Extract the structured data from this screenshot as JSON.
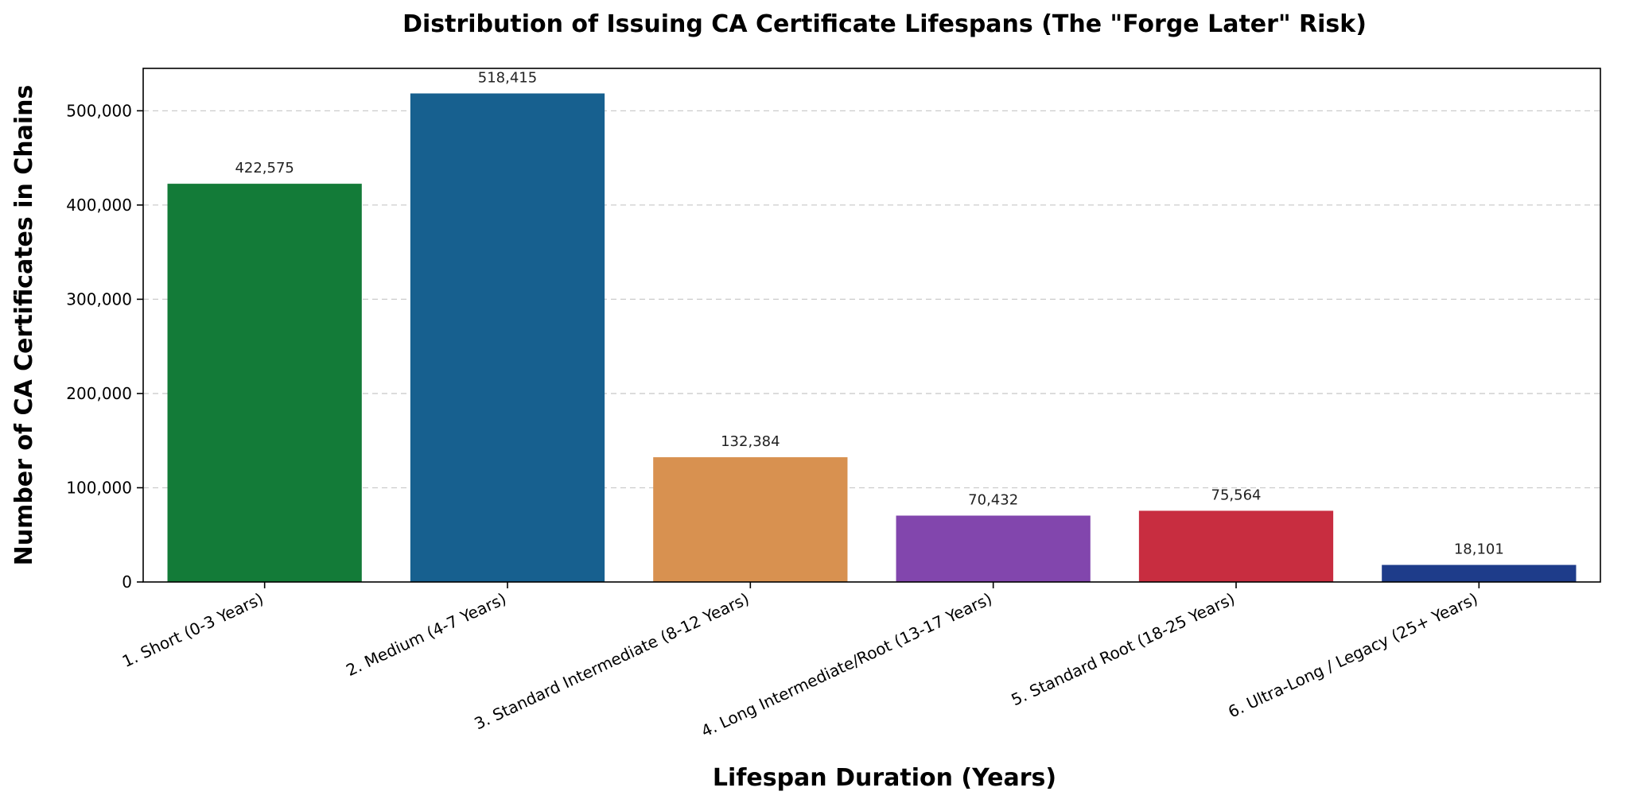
{
  "chart_data": {
    "type": "bar",
    "title": "Distribution of Issuing CA Certificate Lifespans (The \"Forge Later\" Risk)",
    "xlabel": "Lifespan Duration (Years)",
    "ylabel": "Number of CA Certificates in Chains",
    "categories": [
      "1. Short (0-3 Years)",
      "2. Medium (4-7 Years)",
      "3. Standard Intermediate (8-12 Years)",
      "4. Long Intermediate/Root (13-17 Years)",
      "5. Standard Root (18-25 Years)",
      "6. Ultra-Long / Legacy (25+ Years)"
    ],
    "values": [
      422575,
      518415,
      132384,
      70432,
      75564,
      18101
    ],
    "value_labels": [
      "422,575",
      "518,415",
      "132,384",
      "70,432",
      "75,564",
      "18,101"
    ],
    "colors": [
      "#137b38",
      "#17608f",
      "#d89150",
      "#8246ad",
      "#c82d40",
      "#1e3c8a"
    ],
    "ylim": [
      0,
      545000
    ],
    "yticks": [
      0,
      100000,
      200000,
      300000,
      400000,
      500000
    ],
    "ytick_labels": [
      "0",
      "100,000",
      "200,000",
      "300,000",
      "400,000",
      "500,000"
    ],
    "grid": true,
    "legend": "none"
  }
}
